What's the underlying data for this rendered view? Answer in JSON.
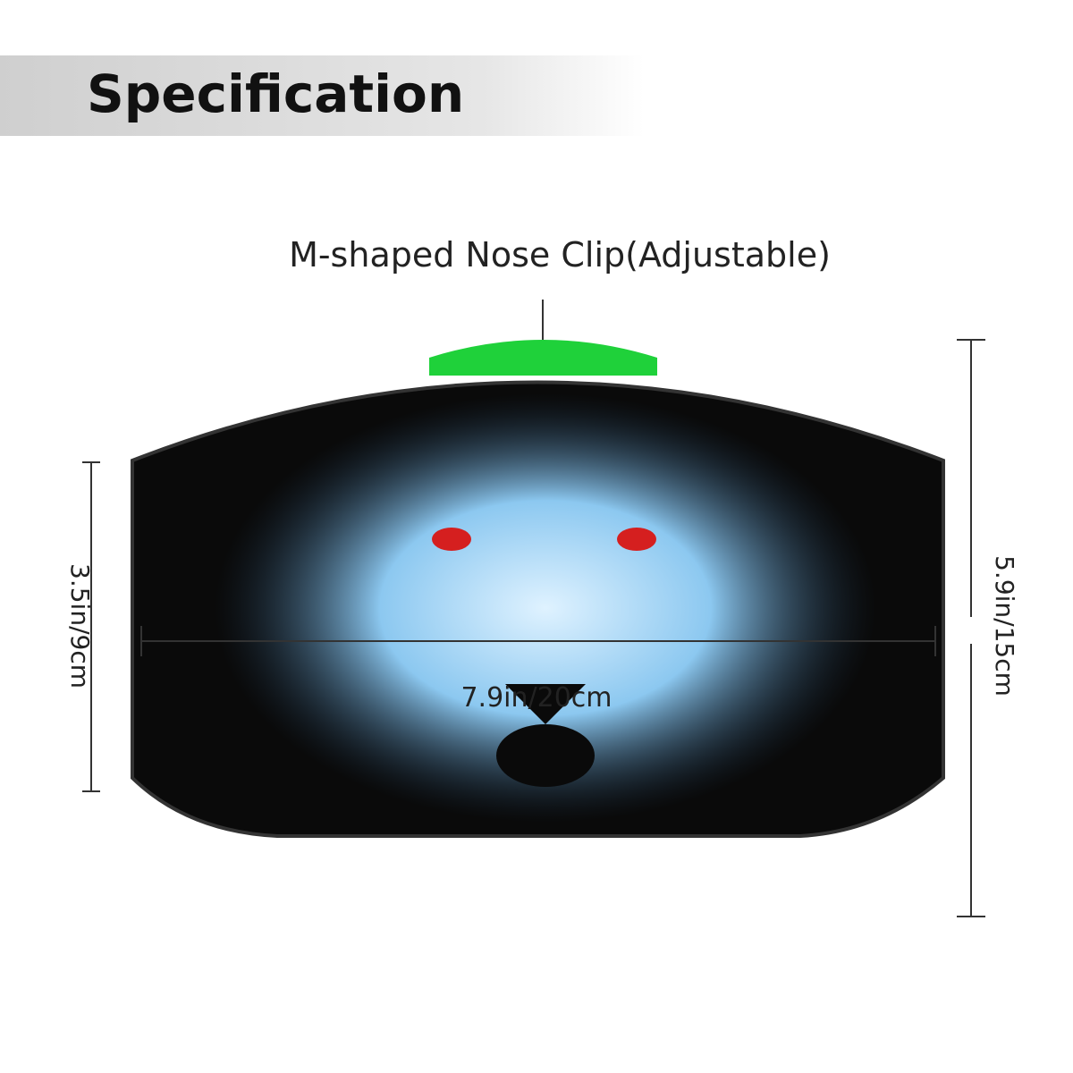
{
  "header": {
    "title": "Specification"
  },
  "annotations": {
    "nose_clip": "M-shaped Nose Clip(Adjustable)",
    "inner_height": "3.5in/9cm",
    "outer_height": "5.9in/15cm",
    "width": "7.9in/20cm"
  }
}
